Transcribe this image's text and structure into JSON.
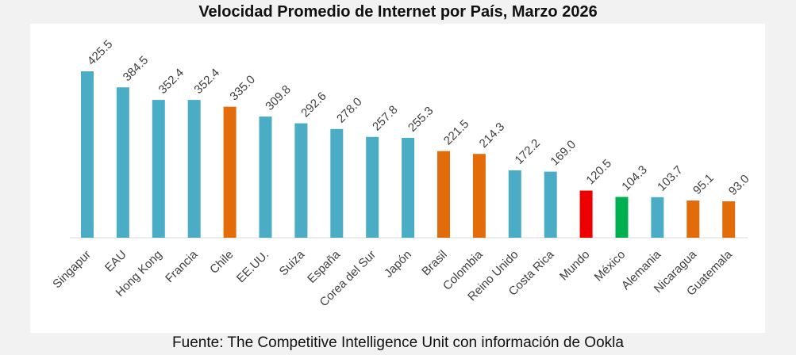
{
  "chart_data": {
    "type": "bar",
    "title": "Velocidad Promedio de Internet por País, Marzo 2026",
    "source": "Fuente: The Competitive Intelligence Unit con información de Ookla",
    "xlabel": "",
    "ylabel": "",
    "ylim": [
      0,
      450
    ],
    "grid": false,
    "categories": [
      "Singapur",
      "EAU",
      "Hong Kong",
      "Francia",
      "Chile",
      "EE.UU.",
      "Suiza",
      "España",
      "Corea del Sur",
      "Japón",
      "Brasil",
      "Colombia",
      "Reino Unido",
      "Costa Rica",
      "Mundo",
      "México",
      "Alemania",
      "Nicaragua",
      "Guatemala"
    ],
    "values": [
      425.5,
      384.5,
      352.4,
      352.4,
      335.0,
      309.8,
      292.6,
      278.0,
      257.8,
      255.3,
      221.5,
      214.3,
      172.2,
      169.0,
      120.5,
      104.3,
      103.7,
      95.1,
      93.0
    ],
    "value_labels": [
      "425.5",
      "384.5",
      "352.4",
      "352.4",
      "335.0",
      "309.8",
      "292.6",
      "278.0",
      "257.8",
      "255.3",
      "221.5",
      "214.3",
      "172.2",
      "169.0",
      "120.5",
      "104.3",
      "103.7",
      "95.1",
      "93.0"
    ],
    "bar_colors": [
      "#4bacc6",
      "#4bacc6",
      "#4bacc6",
      "#4bacc6",
      "#e36c0a",
      "#4bacc6",
      "#4bacc6",
      "#4bacc6",
      "#4bacc6",
      "#4bacc6",
      "#e36c0a",
      "#e36c0a",
      "#4bacc6",
      "#4bacc6",
      "#ee0000",
      "#00b050",
      "#4bacc6",
      "#e36c0a",
      "#e36c0a"
    ]
  }
}
